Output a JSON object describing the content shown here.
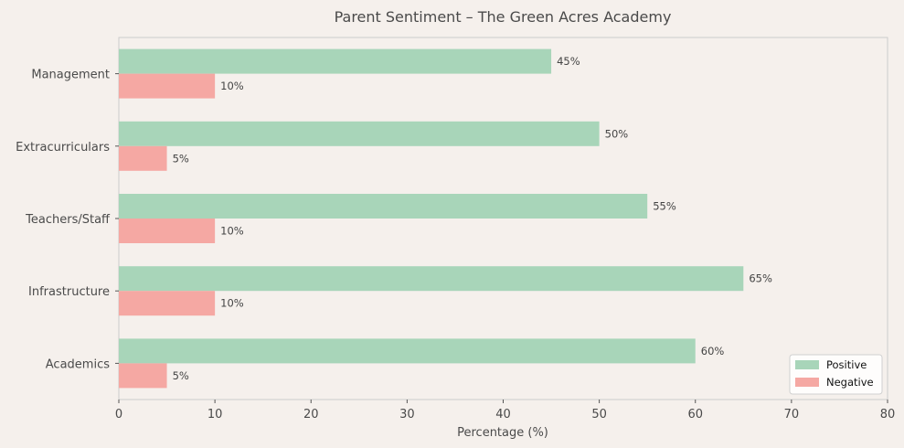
{
  "chart_data": {
    "type": "bar",
    "orientation": "horizontal",
    "title": "Parent Sentiment – The Green Acres Academy",
    "xlabel": "Percentage (%)",
    "ylabel": "",
    "xlim": [
      0,
      80
    ],
    "xticks": [
      0,
      10,
      20,
      30,
      40,
      50,
      60,
      70,
      80
    ],
    "categories": [
      "Academics",
      "Infrastructure",
      "Teachers/Staff",
      "Extracurriculars",
      "Management"
    ],
    "series": [
      {
        "name": "Positive",
        "color": "#a8d5b9",
        "values": [
          60,
          65,
          55,
          50,
          45
        ],
        "labels": [
          "60%",
          "65%",
          "55%",
          "50%",
          "45%"
        ]
      },
      {
        "name": "Negative",
        "color": "#f5a8a3",
        "values": [
          5,
          10,
          10,
          5,
          10
        ],
        "labels": [
          "5%",
          "10%",
          "10%",
          "5%",
          "10%"
        ]
      }
    ],
    "grid": false,
    "legend_position": "lower-right",
    "background": "#f5f0ec"
  }
}
